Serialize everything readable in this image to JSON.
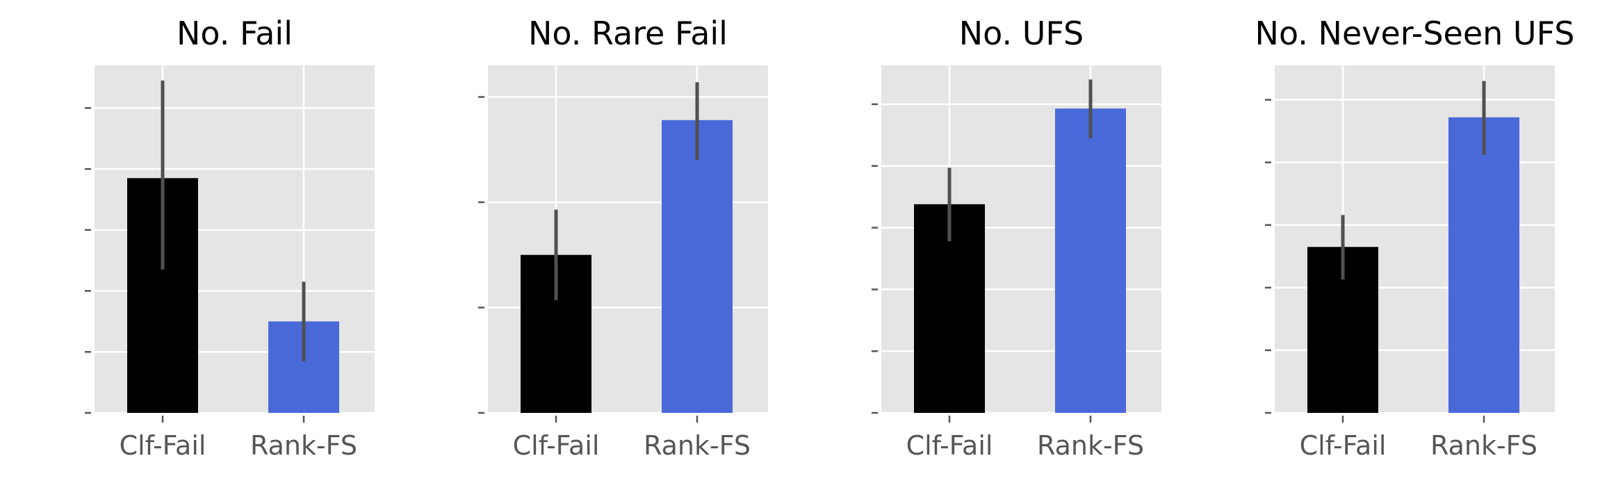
{
  "chart_data": [
    {
      "type": "bar",
      "title": "No. Fail",
      "categories": [
        "Clf-Fail",
        "Rank-FS"
      ],
      "values": [
        3.85,
        1.5
      ],
      "errors": [
        [
          2.35,
          5.45
        ],
        [
          0.85,
          2.15
        ]
      ],
      "ylim": [
        0,
        5.7
      ],
      "yticks": [
        0,
        1,
        2,
        3,
        4,
        5
      ],
      "show_ytick_labels": false,
      "grid": true,
      "colors": [
        "#000000",
        "#4a69d9"
      ]
    },
    {
      "type": "bar",
      "title": "No. Rare Fail",
      "categories": [
        "Clf-Fail",
        "Rank-FS"
      ],
      "values": [
        1.5,
        2.78
      ],
      "errors": [
        [
          1.07,
          1.93
        ],
        [
          2.4,
          3.14
        ]
      ],
      "ylim": [
        0,
        3.3
      ],
      "yticks": [
        0,
        1,
        2,
        3
      ],
      "show_ytick_labels": false,
      "grid": true,
      "colors": [
        "#000000",
        "#4a69d9"
      ]
    },
    {
      "type": "bar",
      "title": "No. UFS",
      "categories": [
        "Clf-Fail",
        "Rank-FS"
      ],
      "values": [
        3.38,
        4.93
      ],
      "errors": [
        [
          2.78,
          3.97
        ],
        [
          4.45,
          5.4
        ]
      ],
      "ylim": [
        0,
        5.63
      ],
      "yticks": [
        0,
        1,
        2,
        3,
        4,
        5
      ],
      "show_ytick_labels": false,
      "grid": true,
      "colors": [
        "#000000",
        "#4a69d9"
      ]
    },
    {
      "type": "bar",
      "title": "No. Never-Seen UFS",
      "categories": [
        "Clf-Fail",
        "Rank-FS"
      ],
      "values": [
        2.65,
        4.72
      ],
      "errors": [
        [
          2.13,
          3.16
        ],
        [
          4.12,
          5.3
        ]
      ],
      "ylim": [
        0,
        5.55
      ],
      "yticks": [
        0,
        1,
        2,
        3,
        4,
        5
      ],
      "show_ytick_labels": false,
      "grid": true,
      "colors": [
        "#000000",
        "#4a69d9"
      ]
    }
  ]
}
